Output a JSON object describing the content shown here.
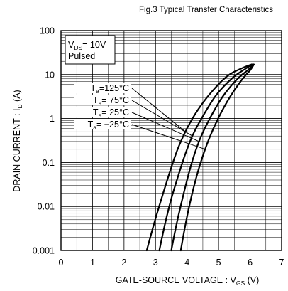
{
  "chart_data": {
    "type": "line",
    "title": "Fig.3  Typical Transfer Characteristics",
    "xlabel": {
      "main": "GATE-SOURCE VOLTAGE : V",
      "sub": "GS",
      "unit": " (V)"
    },
    "ylabel": {
      "main": "DRAIN CURRENT : I",
      "sub": "D",
      "unit": " (A)"
    },
    "xlim": [
      0,
      7
    ],
    "ylim": [
      0.001,
      100
    ],
    "yscale": "log",
    "grid": true,
    "x_ticks": [
      "0",
      "1",
      "2",
      "3",
      "4",
      "5",
      "6",
      "7"
    ],
    "y_ticks": [
      {
        "value": 0.001,
        "label": "0.001"
      },
      {
        "value": 0.01,
        "label": "0.01"
      },
      {
        "value": 0.1,
        "label": "0.1"
      },
      {
        "value": 1,
        "label": "1"
      },
      {
        "value": 10,
        "label": "10"
      },
      {
        "value": 100,
        "label": "100"
      }
    ],
    "conditions": {
      "line1": {
        "main": "V",
        "sub": "DS",
        "rest": "= 10V"
      },
      "line2": "Pulsed"
    },
    "series": [
      {
        "name": "Ta=125°C",
        "label": {
          "prefix": "T",
          "sub": "a",
          "rest": "=125°C"
        },
        "x": [
          2.72,
          2.95,
          3.2,
          3.45,
          3.7,
          4.0,
          4.35,
          4.8,
          5.3,
          5.75,
          6.05
        ],
        "y": [
          0.001,
          0.004,
          0.016,
          0.06,
          0.2,
          0.6,
          1.6,
          4.2,
          9.5,
          14.0,
          17.0
        ]
      },
      {
        "name": "Ta=75°C",
        "label": {
          "prefix": "T",
          "sub": "a",
          "rest": "= 75°C"
        },
        "x": [
          3.12,
          3.3,
          3.5,
          3.72,
          3.95,
          4.2,
          4.55,
          4.95,
          5.45,
          5.85,
          6.08
        ],
        "y": [
          0.001,
          0.004,
          0.015,
          0.05,
          0.16,
          0.45,
          1.3,
          3.6,
          8.5,
          13.5,
          17.0
        ]
      },
      {
        "name": "Ta=25°C",
        "label": {
          "prefix": "T",
          "sub": "a",
          "rest": "= 25°C"
        },
        "x": [
          3.5,
          3.65,
          3.82,
          4.0,
          4.2,
          4.45,
          4.78,
          5.15,
          5.6,
          5.95,
          6.1
        ],
        "y": [
          0.001,
          0.0035,
          0.012,
          0.04,
          0.13,
          0.4,
          1.2,
          3.3,
          8.0,
          13.0,
          17.0
        ]
      },
      {
        "name": "Ta=-25°C",
        "label": {
          "prefix": "T",
          "sub": "a",
          "rest": "= −25°C"
        },
        "x": [
          3.8,
          3.93,
          4.08,
          4.25,
          4.45,
          4.7,
          5.0,
          5.35,
          5.75,
          6.0,
          6.12
        ],
        "y": [
          0.001,
          0.0033,
          0.011,
          0.035,
          0.11,
          0.35,
          1.05,
          3.0,
          7.8,
          12.5,
          17.0
        ]
      }
    ]
  }
}
